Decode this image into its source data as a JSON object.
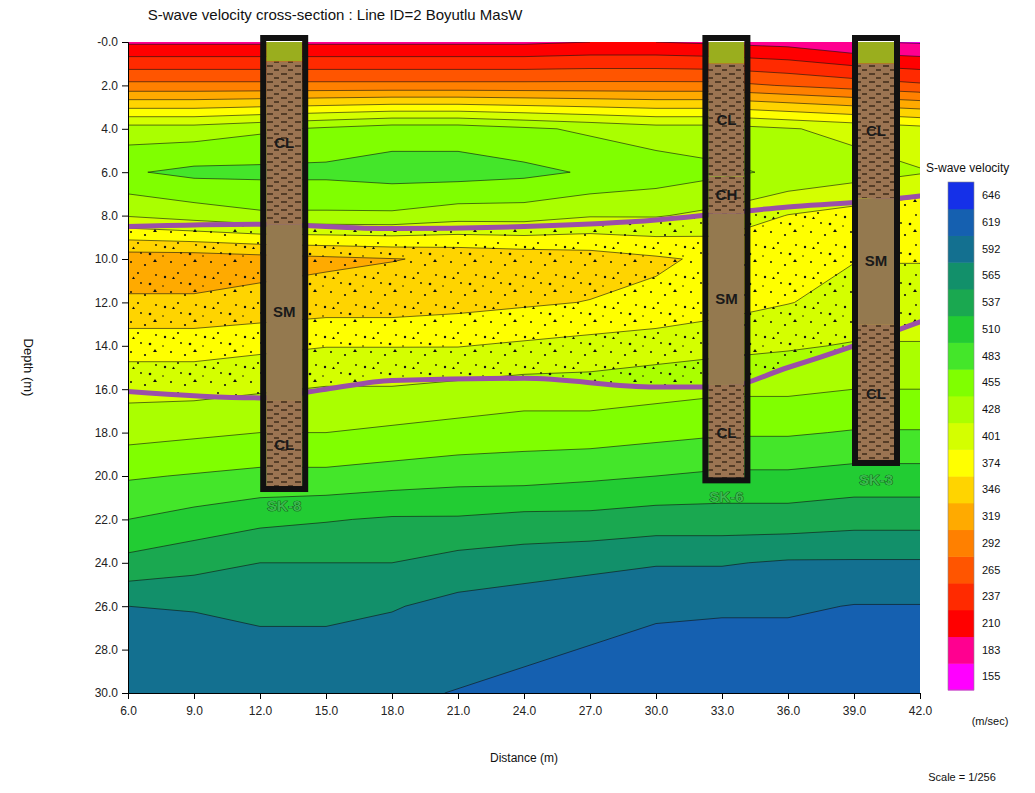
{
  "chart_data": {
    "type": "contour",
    "title": "S-wave velocity cross-section : Line ID=2 Boyutlu MasW",
    "x_label": "Distance (m)",
    "y_label": "Depth (m)",
    "xlim": [
      6,
      42
    ],
    "xticks": [
      {
        "value": 6,
        "label": "6.0"
      },
      {
        "value": 9,
        "label": "9.0"
      },
      {
        "value": 12,
        "label": "12.0"
      },
      {
        "value": 15,
        "label": "15.0"
      },
      {
        "value": 18,
        "label": "18.0"
      },
      {
        "value": 21,
        "label": "21.0"
      },
      {
        "value": 24,
        "label": "24.0"
      },
      {
        "value": 27,
        "label": "27.0"
      },
      {
        "value": 30,
        "label": "30.0"
      },
      {
        "value": 33,
        "label": "33.0"
      },
      {
        "value": 36,
        "label": "36.0"
      },
      {
        "value": 39,
        "label": "39.0"
      },
      {
        "value": 42,
        "label": "42.0"
      }
    ],
    "ylim": [
      0,
      30
    ],
    "yticks": [
      {
        "value": 0,
        "label": "-0.0"
      },
      {
        "value": 2,
        "label": "2.0"
      },
      {
        "value": 4,
        "label": "4.0"
      },
      {
        "value": 6,
        "label": "6.0"
      },
      {
        "value": 8,
        "label": "8.0"
      },
      {
        "value": 10,
        "label": "10.0"
      },
      {
        "value": 12,
        "label": "12.0"
      },
      {
        "value": 14,
        "label": "14.0"
      },
      {
        "value": 16,
        "label": "16.0"
      },
      {
        "value": 18,
        "label": "18.0"
      },
      {
        "value": 20,
        "label": "20.0"
      },
      {
        "value": 22,
        "label": "22.0"
      },
      {
        "value": 24,
        "label": "24.0"
      },
      {
        "value": 26,
        "label": "26.0"
      },
      {
        "value": 28,
        "label": "28.0"
      },
      {
        "value": 30,
        "label": "30.0"
      }
    ],
    "x": [
      6,
      9,
      12,
      15,
      18,
      21,
      24,
      27,
      30,
      33,
      36,
      39,
      42
    ],
    "y": [
      0,
      2,
      4,
      6,
      8,
      10,
      12,
      14,
      16,
      18,
      20,
      22,
      24,
      26,
      28,
      30
    ],
    "cells": [
      [
        205,
        205,
        205,
        205,
        205,
        205,
        205,
        210,
        210,
        205,
        200,
        185,
        180
      ],
      [
        300,
        300,
        300,
        300,
        300,
        300,
        300,
        300,
        300,
        300,
        290,
        280,
        270
      ],
      [
        440,
        440,
        450,
        460,
        470,
        470,
        460,
        450,
        440,
        440,
        430,
        420,
        410
      ],
      [
        480,
        490,
        490,
        490,
        495,
        495,
        490,
        480,
        470,
        460,
        450,
        440,
        430
      ],
      [
        430,
        440,
        450,
        450,
        450,
        440,
        440,
        430,
        430,
        420,
        400,
        390,
        380
      ],
      [
        330,
        330,
        335,
        340,
        345,
        350,
        355,
        360,
        370,
        380,
        390,
        400,
        400
      ],
      [
        350,
        350,
        355,
        360,
        360,
        365,
        370,
        375,
        380,
        390,
        400,
        410,
        410
      ],
      [
        390,
        390,
        395,
        400,
        400,
        400,
        405,
        410,
        415,
        420,
        425,
        430,
        430
      ],
      [
        420,
        420,
        425,
        430,
        430,
        435,
        440,
        440,
        445,
        450,
        450,
        455,
        455
      ],
      [
        445,
        450,
        455,
        455,
        460,
        465,
        470,
        470,
        475,
        480,
        480,
        485,
        485
      ],
      [
        480,
        485,
        490,
        490,
        495,
        500,
        500,
        505,
        510,
        515,
        515,
        520,
        520
      ],
      [
        510,
        520,
        530,
        535,
        540,
        540,
        545,
        545,
        550,
        550,
        550,
        555,
        555
      ],
      [
        545,
        555,
        565,
        565,
        565,
        575,
        580,
        585,
        590,
        590,
        595,
        595,
        595
      ],
      [
        592,
        590,
        585,
        585,
        590,
        600,
        605,
        610,
        615,
        615,
        615,
        620,
        620
      ],
      [
        605,
        605,
        600,
        600,
        605,
        610,
        615,
        620,
        625,
        630,
        630,
        630,
        630
      ],
      [
        615,
        615,
        610,
        610,
        615,
        620,
        625,
        630,
        635,
        640,
        640,
        640,
        640
      ]
    ],
    "colorbar": {
      "title": "S-wave velocity",
      "unit": "(m/sec)",
      "levels": [
        155,
        183,
        210,
        237,
        265,
        292,
        319,
        346,
        374,
        401,
        428,
        455,
        483,
        510,
        537,
        565,
        592,
        619,
        646
      ],
      "colors": [
        "#ff00ff",
        "#ff0090",
        "#ff0000",
        "#ff2a00",
        "#ff5500",
        "#ff8000",
        "#ffaa00",
        "#ffd400",
        "#ffff00",
        "#d4ff00",
        "#aaff00",
        "#80ff00",
        "#44e62a",
        "#22cc33",
        "#1aa850",
        "#12906a",
        "#137090",
        "#1560b0",
        "#1530e8"
      ]
    },
    "interfaces": [
      {
        "x": [
          6,
          12,
          18,
          24,
          30,
          33,
          36,
          39,
          42
        ],
        "y": [
          8.5,
          8.4,
          8.6,
          8.5,
          8.2,
          7.9,
          7.6,
          7.4,
          7.1
        ]
      },
      {
        "x": [
          6,
          12,
          15,
          18,
          24,
          30,
          33,
          36,
          39,
          42
        ],
        "y": [
          16.1,
          16.4,
          16.0,
          15.6,
          15.5,
          15.9,
          15.9,
          15.0,
          14.0,
          12.9
        ]
      }
    ],
    "boreholes": [
      {
        "name": "SK-8",
        "x": 13.1,
        "depth": 20.6,
        "layers": [
          {
            "top": 0,
            "bottom": 0.9
          },
          {
            "label": "CL",
            "top": 0.9,
            "bottom": 8.4
          },
          {
            "label": "SM",
            "top": 8.4,
            "bottom": 16.5
          },
          {
            "label": "CL",
            "top": 16.5,
            "bottom": 20.6
          }
        ]
      },
      {
        "name": "SK-6",
        "x": 33.2,
        "depth": 20.2,
        "layers": [
          {
            "top": 0,
            "bottom": 1.0
          },
          {
            "label": "CL",
            "top": 1.0,
            "bottom": 6.2
          },
          {
            "label": "CH",
            "top": 6.2,
            "bottom": 7.9
          },
          {
            "label": "SM",
            "top": 7.9,
            "bottom": 15.8
          },
          {
            "label": "CL",
            "top": 15.8,
            "bottom": 20.2
          }
        ]
      },
      {
        "name": "SK-3",
        "x": 40.0,
        "depth": 19.4,
        "layers": [
          {
            "top": 0,
            "bottom": 1.0
          },
          {
            "label": "CL",
            "top": 1.0,
            "bottom": 7.2
          },
          {
            "label": "SM",
            "top": 7.2,
            "bottom": 13.0
          },
          {
            "label": "CL",
            "top": 13.0,
            "bottom": 19.4
          }
        ]
      }
    ],
    "scale_note": "Scale = 1/256"
  }
}
